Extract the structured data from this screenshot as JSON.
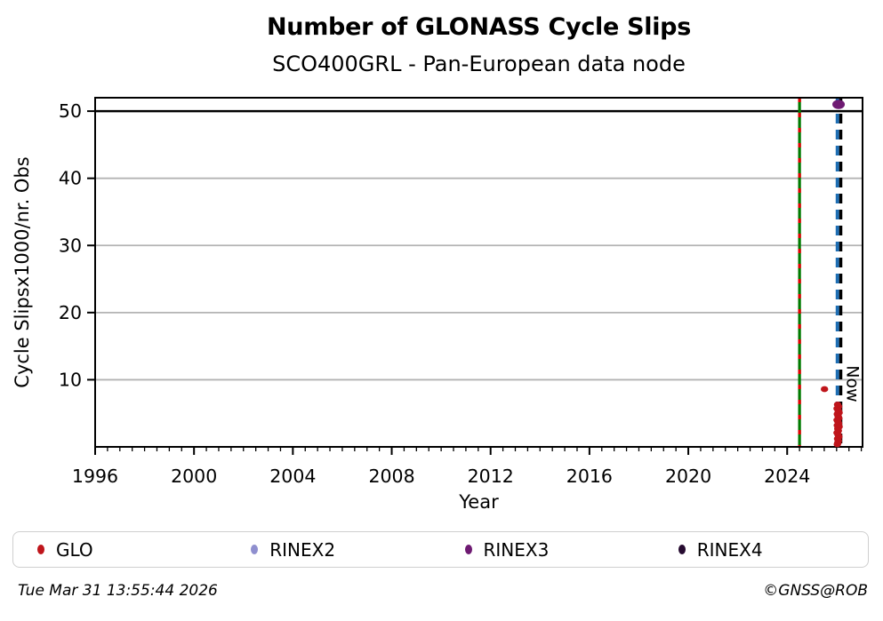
{
  "footer": {
    "timestamp": "Tue Mar 31 13:55:44 2026",
    "copyright": "©GNSS@ROB"
  },
  "legend": {
    "items": [
      {
        "label": "GLO",
        "color": "#bf151b",
        "icon": "glo-marker-icon"
      },
      {
        "label": "RINEX2",
        "color": "#8f8fcf",
        "icon": "rinex2-marker-icon"
      },
      {
        "label": "RINEX3",
        "color": "#6e1a72",
        "icon": "rinex3-marker-icon"
      },
      {
        "label": "RINEX4",
        "color": "#260b30",
        "icon": "rinex4-marker-icon"
      }
    ]
  },
  "chart_data": {
    "type": "scatter",
    "title": "Number of GLONASS Cycle Slips",
    "subtitle": "SCO400GRL - Pan-European data node",
    "xlabel": "Year",
    "ylabel": "Cycle Slipsx1000/nr. Obs",
    "xlim": [
      1996,
      2027.05
    ],
    "ylim": [
      0,
      52
    ],
    "xticks": [
      1996,
      2000,
      2004,
      2008,
      2012,
      2016,
      2020,
      2024
    ],
    "yticks": [
      10,
      20,
      30,
      40,
      50
    ],
    "x_minor_step": 0.5,
    "grid": "horizontal",
    "grid_color": "#b3b3b3",
    "axis_color": "#000000",
    "threshold_line": {
      "y": 50,
      "color": "#000000"
    },
    "vlines": [
      {
        "x": 2024.5,
        "name": "event-line",
        "base_color": "#007a00",
        "dash_color": "#e00000",
        "base_dash": "none",
        "overlay_dash": "5 12",
        "label": ""
      },
      {
        "x": 2026.1,
        "name": "now-line",
        "base_color": "#1f6fb4",
        "dash_color": "#000000",
        "base_dash": "11 7",
        "overlay_dash": "11 7",
        "label": "Now"
      }
    ],
    "series": [
      {
        "name": "GLO",
        "color": "#bf151b",
        "marker_rx": 4.2,
        "marker_ry": 3.4,
        "points": [
          [
            2025.51,
            8.6
          ],
          [
            2026.04,
            6.3
          ],
          [
            2026.08,
            6.0
          ],
          [
            2026.02,
            5.7
          ],
          [
            2026.07,
            5.4
          ],
          [
            2026.1,
            5.1
          ],
          [
            2026.03,
            4.9
          ],
          [
            2026.06,
            4.6
          ],
          [
            2026.09,
            4.3
          ],
          [
            2026.02,
            4.0
          ],
          [
            2026.05,
            3.8
          ],
          [
            2026.08,
            3.5
          ],
          [
            2026.03,
            3.2
          ],
          [
            2026.1,
            3.0
          ],
          [
            2026.05,
            2.7
          ],
          [
            2026.07,
            2.4
          ],
          [
            2026.02,
            2.1
          ],
          [
            2026.06,
            1.8
          ],
          [
            2026.09,
            1.5
          ],
          [
            2026.04,
            1.2
          ],
          [
            2026.07,
            0.9
          ],
          [
            2026.05,
            0.6
          ],
          [
            2026.03,
            0.4
          ]
        ]
      },
      {
        "name": "RINEX2",
        "color": "#8f8fcf",
        "marker_rx": 4.2,
        "marker_ry": 3.4,
        "points": []
      },
      {
        "name": "RINEX3",
        "color": "#6e1a72",
        "marker_rx": 7,
        "marker_ry": 5.2,
        "points": [
          [
            2026.08,
            51
          ]
        ]
      },
      {
        "name": "RINEX4",
        "color": "#260b30",
        "marker_rx": 4.2,
        "marker_ry": 3.4,
        "points": []
      }
    ],
    "legend_position": "bottom"
  }
}
